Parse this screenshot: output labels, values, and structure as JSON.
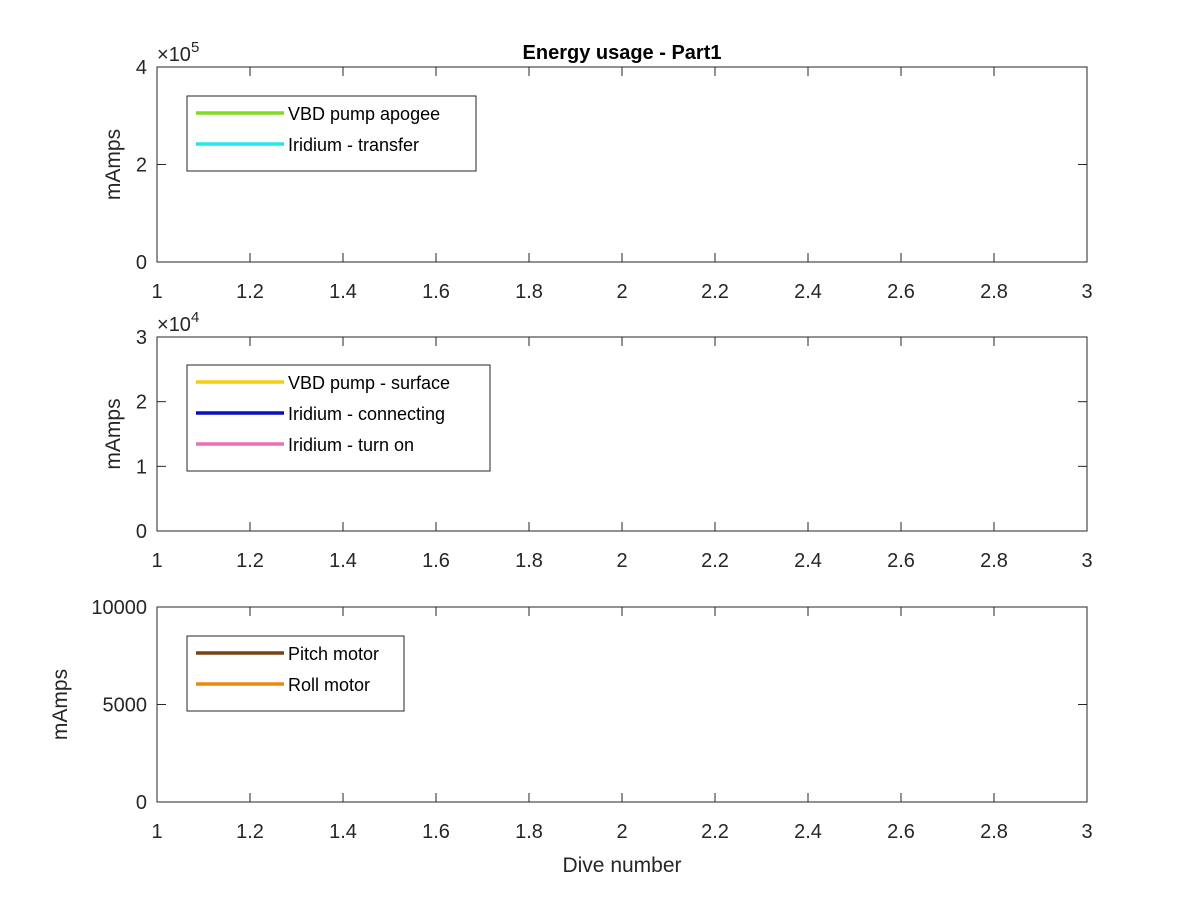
{
  "chart_data": [
    {
      "type": "line",
      "title": "Energy usage - Part1",
      "xlabel": "",
      "ylabel": "mAmps",
      "xlim": [
        1,
        3
      ],
      "ylim": [
        0,
        400000
      ],
      "x_ticks": [
        "1",
        "1.2",
        "1.4",
        "1.6",
        "1.8",
        "2",
        "2.2",
        "2.4",
        "2.6",
        "2.8",
        "3"
      ],
      "y_ticks": [
        "0",
        "2",
        "4"
      ],
      "y_exponent": "10",
      "y_exponent_power": "5",
      "grid": false,
      "legend_position": "top-left",
      "series": [
        {
          "name": "VBD pump apogee",
          "color": "#7fdb1f",
          "x": [],
          "y": []
        },
        {
          "name": "Iridium - transfer",
          "color": "#22e8f0",
          "x": [],
          "y": []
        }
      ]
    },
    {
      "type": "line",
      "title": "",
      "xlabel": "",
      "ylabel": "mAmps",
      "xlim": [
        1,
        3
      ],
      "ylim": [
        0,
        30000
      ],
      "x_ticks": [
        "1",
        "1.2",
        "1.4",
        "1.6",
        "1.8",
        "2",
        "2.2",
        "2.4",
        "2.6",
        "2.8",
        "3"
      ],
      "y_ticks": [
        "0",
        "1",
        "2",
        "3"
      ],
      "y_exponent": "10",
      "y_exponent_power": "4",
      "grid": false,
      "legend_position": "top-left",
      "series": [
        {
          "name": "VBD pump - surface",
          "color": "#f2cd14",
          "x": [],
          "y": []
        },
        {
          "name": "Iridium - connecting",
          "color": "#0a0fbf",
          "x": [],
          "y": []
        },
        {
          "name": "Iridium - turn on",
          "color": "#ea6fb5",
          "x": [],
          "y": []
        }
      ]
    },
    {
      "type": "line",
      "title": "",
      "xlabel": "Dive number",
      "ylabel": "mAmps",
      "xlim": [
        1,
        3
      ],
      "ylim": [
        0,
        10000
      ],
      "x_ticks": [
        "1",
        "1.2",
        "1.4",
        "1.6",
        "1.8",
        "2",
        "2.2",
        "2.4",
        "2.6",
        "2.8",
        "3"
      ],
      "y_ticks": [
        "0",
        "5000",
        "10000"
      ],
      "grid": false,
      "legend_position": "top-left",
      "series": [
        {
          "name": "Pitch motor",
          "color": "#7a4412",
          "x": [],
          "y": []
        },
        {
          "name": "Roll motor",
          "color": "#e88a10",
          "x": [],
          "y": []
        }
      ]
    }
  ]
}
